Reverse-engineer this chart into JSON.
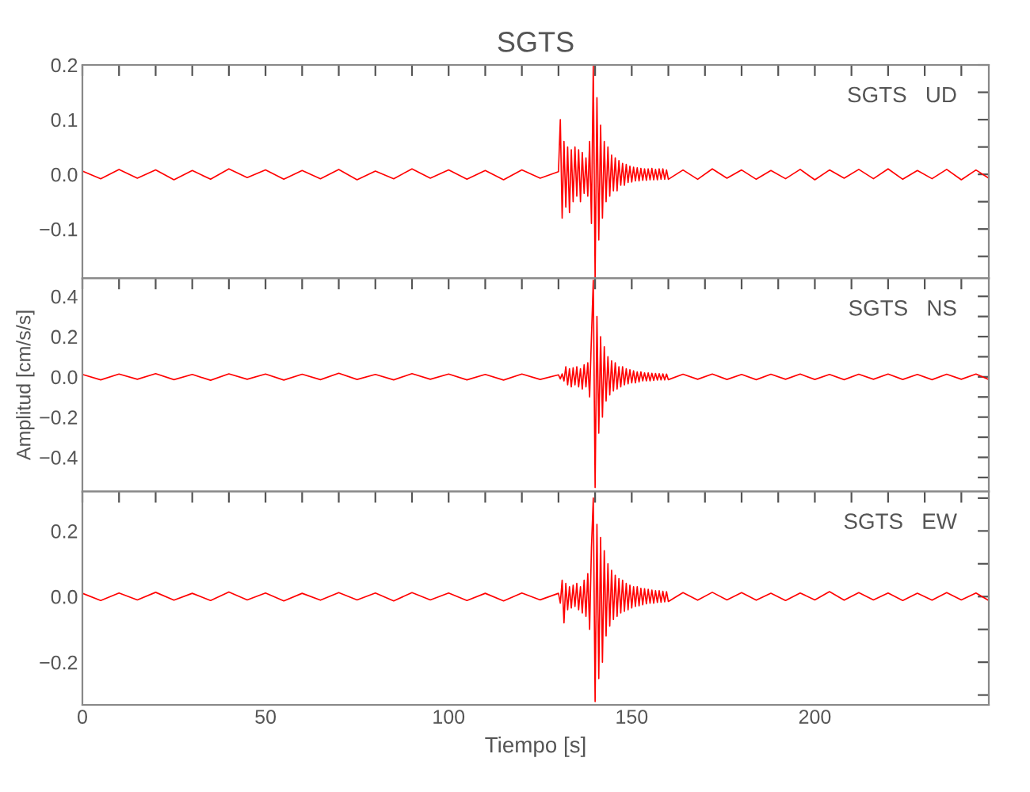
{
  "chart_data": [
    {
      "type": "line",
      "title": "SGTS",
      "annotations": [
        "SGTS   UD"
      ],
      "tick_labels": "y",
      "x": [
        0,
        5,
        10,
        15,
        20,
        25,
        30,
        35,
        40,
        45,
        50,
        55,
        60,
        65,
        70,
        75,
        80,
        85,
        90,
        95,
        100,
        105,
        110,
        115,
        120,
        125,
        130,
        130.5,
        131,
        131.5,
        132,
        132.5,
        133,
        133.5,
        134,
        134.5,
        135,
        135.5,
        136,
        136.5,
        137,
        137.5,
        138,
        138.5,
        139,
        139.5,
        140,
        140.5,
        141,
        141.5,
        142,
        142.5,
        143,
        143.5,
        144,
        144.5,
        145,
        145.5,
        146,
        146.5,
        147,
        147.5,
        148,
        148.5,
        149,
        149.5,
        150,
        150.5,
        151,
        151.5,
        152,
        152.5,
        153,
        153.5,
        154,
        154.5,
        155,
        155.5,
        156,
        156.5,
        157,
        157.5,
        158,
        158.5,
        159,
        159.5,
        160,
        164,
        168,
        172,
        176,
        180,
        184,
        188,
        192,
        196,
        200,
        204,
        208,
        212,
        216,
        220,
        224,
        228,
        232,
        236,
        240,
        244,
        247.5
      ],
      "series": [
        {
          "color": "#ff0000",
          "values": [
            0.006,
            -0.008,
            0.009,
            -0.007,
            0.008,
            -0.01,
            0.007,
            -0.009,
            0.01,
            -0.006,
            0.008,
            -0.009,
            0.007,
            -0.008,
            0.009,
            -0.01,
            0.006,
            -0.008,
            0.01,
            -0.007,
            0.008,
            -0.009,
            0.007,
            -0.01,
            0.008,
            -0.007,
            0.005,
            0.1,
            -0.08,
            0.06,
            -0.06,
            0.05,
            -0.07,
            0.045,
            -0.05,
            0.05,
            -0.04,
            0.045,
            -0.05,
            0.04,
            -0.035,
            0.03,
            -0.04,
            0.06,
            -0.09,
            0.2,
            -0.19,
            0.14,
            -0.12,
            0.09,
            -0.08,
            0.06,
            -0.05,
            0.05,
            -0.04,
            0.035,
            -0.03,
            0.03,
            -0.03,
            0.025,
            -0.02,
            0.02,
            -0.02,
            0.018,
            -0.015,
            0.015,
            -0.014,
            0.013,
            -0.012,
            0.012,
            -0.012,
            0.011,
            -0.011,
            0.01,
            -0.011,
            0.01,
            -0.01,
            0.011,
            -0.01,
            0.009,
            -0.01,
            0.01,
            -0.009,
            0.01,
            -0.009,
            0.008,
            -0.009,
            0.008,
            -0.009,
            0.01,
            -0.007,
            0.008,
            -0.009,
            0.007,
            -0.008,
            0.009,
            -0.01,
            0.008,
            -0.007,
            0.009,
            -0.008,
            0.01,
            -0.009,
            0.007,
            -0.008,
            0.009,
            -0.01,
            0.008,
            -0.007
          ]
        }
      ],
      "xlim": [
        0,
        247.5
      ],
      "ylim": [
        -0.19,
        0.2
      ],
      "xticks": [
        0,
        {
          "value": 10,
          "label": null
        },
        {
          "value": 20,
          "label": null
        },
        {
          "value": 30,
          "label": null
        },
        {
          "value": 40,
          "label": null
        },
        50,
        {
          "value": 60,
          "label": null
        },
        {
          "value": 70,
          "label": null
        },
        {
          "value": 80,
          "label": null
        },
        {
          "value": 90,
          "label": null
        },
        100,
        {
          "value": 110,
          "label": null
        },
        {
          "value": 120,
          "label": null
        },
        {
          "value": 130,
          "label": null
        },
        {
          "value": 140,
          "label": null
        },
        150,
        {
          "value": 160,
          "label": null
        },
        {
          "value": 170,
          "label": null
        },
        {
          "value": 180,
          "label": null
        },
        {
          "value": 190,
          "label": null
        },
        200,
        {
          "value": 210,
          "label": null
        },
        {
          "value": 220,
          "label": null
        },
        {
          "value": 230,
          "label": null
        },
        {
          "value": 240,
          "label": null
        }
      ],
      "yticks": [
        {
          "value": -0.15,
          "label": null
        },
        {
          "value": -0.1,
          "label": "−0.1"
        },
        {
          "value": -0.05,
          "label": null
        },
        {
          "value": 0,
          "label": "0.0"
        },
        {
          "value": 0.05,
          "label": null
        },
        {
          "value": 0.1,
          "label": "0.1"
        },
        {
          "value": 0.15,
          "label": null
        },
        {
          "value": 0.2,
          "label": "0.2"
        }
      ]
    },
    {
      "type": "line",
      "ylabel": "Amplitud [cm/s/s]",
      "annotations": [
        "SGTS   NS"
      ],
      "tick_labels": "y",
      "x": [
        0,
        5,
        10,
        15,
        20,
        25,
        30,
        35,
        40,
        45,
        50,
        55,
        60,
        65,
        70,
        75,
        80,
        85,
        90,
        95,
        100,
        105,
        110,
        115,
        120,
        125,
        130,
        130.5,
        131,
        131.5,
        132,
        132.5,
        133,
        133.5,
        134,
        134.5,
        135,
        135.5,
        136,
        136.5,
        137,
        137.5,
        138,
        138.5,
        139,
        139.5,
        140,
        140.5,
        141,
        141.5,
        142,
        142.5,
        143,
        143.5,
        144,
        144.5,
        145,
        145.5,
        146,
        146.5,
        147,
        147.5,
        148,
        148.5,
        149,
        149.5,
        150,
        150.5,
        151,
        151.5,
        152,
        152.5,
        153,
        153.5,
        154,
        154.5,
        155,
        155.5,
        156,
        156.5,
        157,
        157.5,
        158,
        158.5,
        159,
        159.5,
        160,
        164,
        168,
        172,
        176,
        180,
        184,
        188,
        192,
        196,
        200,
        204,
        208,
        212,
        216,
        220,
        224,
        228,
        232,
        236,
        240,
        244,
        247.5
      ],
      "series": [
        {
          "color": "#ff0000",
          "values": [
            0.012,
            -0.015,
            0.014,
            -0.012,
            0.016,
            -0.014,
            0.012,
            -0.017,
            0.015,
            -0.012,
            0.014,
            -0.016,
            0.013,
            -0.014,
            0.018,
            -0.013,
            0.012,
            -0.015,
            0.016,
            -0.012,
            0.014,
            -0.015,
            0.012,
            -0.016,
            0.014,
            -0.013,
            0.01,
            -0.01,
            0.015,
            -0.02,
            0.05,
            -0.04,
            0.04,
            -0.05,
            0.045,
            -0.04,
            0.05,
            -0.05,
            0.04,
            -0.06,
            0.06,
            -0.05,
            0.07,
            -0.1,
            0.2,
            0.48,
            -0.55,
            0.3,
            -0.28,
            0.2,
            -0.2,
            0.15,
            -0.12,
            0.1,
            -0.09,
            0.08,
            -0.07,
            0.07,
            -0.06,
            0.05,
            -0.05,
            0.05,
            -0.04,
            0.04,
            -0.035,
            0.035,
            -0.03,
            0.03,
            -0.03,
            0.025,
            -0.025,
            0.025,
            -0.02,
            0.02,
            -0.02,
            0.02,
            -0.02,
            0.018,
            -0.018,
            0.017,
            -0.016,
            0.016,
            -0.015,
            0.015,
            -0.015,
            0.014,
            -0.014,
            0.013,
            -0.012,
            0.014,
            -0.013,
            0.012,
            -0.014,
            0.013,
            -0.012,
            0.014,
            -0.013,
            0.012,
            -0.014,
            0.013,
            -0.012,
            0.014,
            -0.013,
            0.012,
            -0.014,
            0.013,
            -0.012,
            0.014,
            -0.013
          ]
        }
      ],
      "xlim": [
        0,
        247.5
      ],
      "ylim": [
        -0.57,
        0.49
      ],
      "xticks": [
        0,
        {
          "value": 10,
          "label": null
        },
        {
          "value": 20,
          "label": null
        },
        {
          "value": 30,
          "label": null
        },
        {
          "value": 40,
          "label": null
        },
        50,
        {
          "value": 60,
          "label": null
        },
        {
          "value": 70,
          "label": null
        },
        {
          "value": 80,
          "label": null
        },
        {
          "value": 90,
          "label": null
        },
        100,
        {
          "value": 110,
          "label": null
        },
        {
          "value": 120,
          "label": null
        },
        {
          "value": 130,
          "label": null
        },
        {
          "value": 140,
          "label": null
        },
        150,
        {
          "value": 160,
          "label": null
        },
        {
          "value": 170,
          "label": null
        },
        {
          "value": 180,
          "label": null
        },
        {
          "value": 190,
          "label": null
        },
        200,
        {
          "value": 210,
          "label": null
        },
        {
          "value": 220,
          "label": null
        },
        {
          "value": 230,
          "label": null
        },
        {
          "value": 240,
          "label": null
        }
      ],
      "yticks": [
        {
          "value": -0.5,
          "label": null
        },
        {
          "value": -0.4,
          "label": "−0.4"
        },
        {
          "value": -0.3,
          "label": null
        },
        {
          "value": -0.2,
          "label": "−0.2"
        },
        {
          "value": -0.1,
          "label": null
        },
        {
          "value": 0,
          "label": "0.0"
        },
        {
          "value": 0.1,
          "label": null
        },
        {
          "value": 0.2,
          "label": "0.2"
        },
        {
          "value": 0.3,
          "label": null
        },
        {
          "value": 0.4,
          "label": "0.4"
        }
      ]
    },
    {
      "type": "line",
      "xlabel": "Tiempo [s]",
      "annotations": [
        "SGTS   EW"
      ],
      "x": [
        0,
        5,
        10,
        15,
        20,
        25,
        30,
        35,
        40,
        45,
        50,
        55,
        60,
        65,
        70,
        75,
        80,
        85,
        90,
        95,
        100,
        105,
        110,
        115,
        120,
        125,
        130,
        130.5,
        131,
        131.5,
        132,
        132.5,
        133,
        133.5,
        134,
        134.5,
        135,
        135.5,
        136,
        136.5,
        137,
        137.5,
        138,
        138.5,
        139,
        139.5,
        140,
        140.5,
        141,
        141.5,
        142,
        142.5,
        143,
        143.5,
        144,
        144.5,
        145,
        145.5,
        146,
        146.5,
        147,
        147.5,
        148,
        148.5,
        149,
        149.5,
        150,
        150.5,
        151,
        151.5,
        152,
        152.5,
        153,
        153.5,
        154,
        154.5,
        155,
        155.5,
        156,
        156.5,
        157,
        157.5,
        158,
        158.5,
        159,
        159.5,
        160,
        164,
        168,
        172,
        176,
        180,
        184,
        188,
        192,
        196,
        200,
        204,
        208,
        212,
        216,
        220,
        224,
        228,
        232,
        236,
        240,
        244,
        247.5
      ],
      "series": [
        {
          "color": "#ff0000",
          "values": [
            0.01,
            -0.012,
            0.011,
            -0.01,
            0.013,
            -0.011,
            0.01,
            -0.012,
            0.014,
            -0.01,
            0.011,
            -0.013,
            0.01,
            -0.011,
            0.012,
            -0.01,
            0.011,
            -0.013,
            0.012,
            -0.01,
            0.011,
            -0.012,
            0.01,
            -0.013,
            0.011,
            -0.01,
            0.01,
            -0.02,
            0.05,
            -0.08,
            0.04,
            -0.04,
            0.03,
            -0.035,
            0.035,
            -0.03,
            0.04,
            -0.04,
            0.03,
            -0.05,
            0.05,
            -0.06,
            0.07,
            -0.1,
            0.15,
            0.3,
            -0.32,
            0.22,
            -0.25,
            0.18,
            -0.2,
            0.14,
            -0.12,
            0.1,
            -0.09,
            0.08,
            -0.07,
            0.065,
            -0.06,
            0.055,
            -0.05,
            0.05,
            -0.045,
            0.04,
            -0.04,
            0.035,
            -0.035,
            0.03,
            -0.03,
            0.03,
            -0.028,
            0.025,
            -0.025,
            0.024,
            -0.022,
            0.022,
            -0.02,
            0.02,
            -0.02,
            0.018,
            -0.018,
            0.018,
            -0.017,
            0.016,
            -0.016,
            0.015,
            -0.015,
            0.012,
            -0.011,
            0.013,
            -0.01,
            0.012,
            -0.011,
            0.01,
            -0.012,
            0.011,
            -0.01,
            0.015,
            -0.011,
            0.012,
            -0.01,
            0.011,
            -0.012,
            0.01,
            -0.011,
            0.012,
            -0.01,
            0.011,
            -0.012
          ]
        }
      ],
      "xlim": [
        0,
        247.5
      ],
      "ylim": [
        -0.33,
        0.32
      ],
      "xticks": [
        0,
        {
          "value": 10,
          "label": null
        },
        {
          "value": 20,
          "label": null
        },
        {
          "value": 30,
          "label": null
        },
        {
          "value": 40,
          "label": null
        },
        50,
        {
          "value": 60,
          "label": null
        },
        {
          "value": 70,
          "label": null
        },
        {
          "value": 80,
          "label": null
        },
        {
          "value": 90,
          "label": null
        },
        100,
        {
          "value": 110,
          "label": null
        },
        {
          "value": 120,
          "label": null
        },
        {
          "value": 130,
          "label": null
        },
        {
          "value": 140,
          "label": null
        },
        150,
        {
          "value": 160,
          "label": null
        },
        {
          "value": 170,
          "label": null
        },
        {
          "value": 180,
          "label": null
        },
        {
          "value": 190,
          "label": null
        },
        200,
        {
          "value": 210,
          "label": null
        },
        {
          "value": 220,
          "label": null
        },
        {
          "value": 230,
          "label": null
        },
        {
          "value": 240,
          "label": null
        }
      ],
      "yticks": [
        {
          "value": -0.3,
          "label": null
        },
        {
          "value": -0.2,
          "label": "−0.2"
        },
        {
          "value": -0.1,
          "label": null
        },
        {
          "value": 0,
          "label": "0.0"
        },
        {
          "value": 0.1,
          "label": null
        },
        {
          "value": 0.2,
          "label": "0.2"
        },
        {
          "value": 0.3,
          "label": null
        }
      ]
    }
  ]
}
